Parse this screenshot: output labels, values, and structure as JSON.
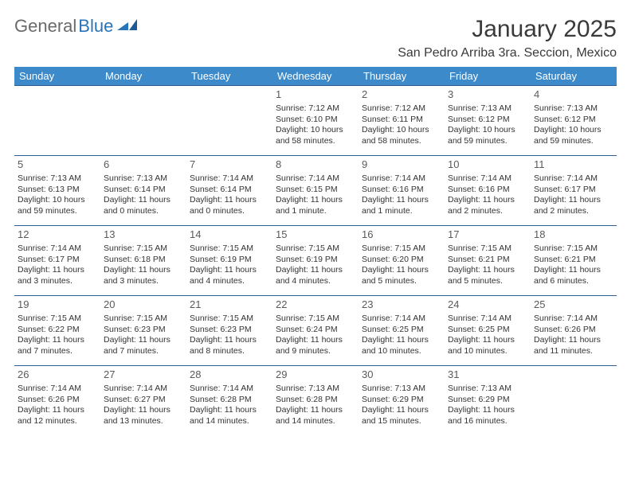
{
  "logo": {
    "text1": "General",
    "text2": "Blue"
  },
  "title": "January 2025",
  "location": "San Pedro Arriba 3ra. Seccion, Mexico",
  "colors": {
    "header_bg": "#3c8ac9",
    "header_text": "#ffffff",
    "row_divider": "#2a5d8f",
    "body_text": "#333333",
    "logo_gray": "#6a6a6a",
    "logo_blue": "#2a74b8"
  },
  "weekdays": [
    "Sunday",
    "Monday",
    "Tuesday",
    "Wednesday",
    "Thursday",
    "Friday",
    "Saturday"
  ],
  "weeks": [
    [
      null,
      null,
      null,
      {
        "d": "1",
        "sr": "7:12 AM",
        "ss": "6:10 PM",
        "dl": "10 hours and 58 minutes."
      },
      {
        "d": "2",
        "sr": "7:12 AM",
        "ss": "6:11 PM",
        "dl": "10 hours and 58 minutes."
      },
      {
        "d": "3",
        "sr": "7:13 AM",
        "ss": "6:12 PM",
        "dl": "10 hours and 59 minutes."
      },
      {
        "d": "4",
        "sr": "7:13 AM",
        "ss": "6:12 PM",
        "dl": "10 hours and 59 minutes."
      }
    ],
    [
      {
        "d": "5",
        "sr": "7:13 AM",
        "ss": "6:13 PM",
        "dl": "10 hours and 59 minutes."
      },
      {
        "d": "6",
        "sr": "7:13 AM",
        "ss": "6:14 PM",
        "dl": "11 hours and 0 minutes."
      },
      {
        "d": "7",
        "sr": "7:14 AM",
        "ss": "6:14 PM",
        "dl": "11 hours and 0 minutes."
      },
      {
        "d": "8",
        "sr": "7:14 AM",
        "ss": "6:15 PM",
        "dl": "11 hours and 1 minute."
      },
      {
        "d": "9",
        "sr": "7:14 AM",
        "ss": "6:16 PM",
        "dl": "11 hours and 1 minute."
      },
      {
        "d": "10",
        "sr": "7:14 AM",
        "ss": "6:16 PM",
        "dl": "11 hours and 2 minutes."
      },
      {
        "d": "11",
        "sr": "7:14 AM",
        "ss": "6:17 PM",
        "dl": "11 hours and 2 minutes."
      }
    ],
    [
      {
        "d": "12",
        "sr": "7:14 AM",
        "ss": "6:17 PM",
        "dl": "11 hours and 3 minutes."
      },
      {
        "d": "13",
        "sr": "7:15 AM",
        "ss": "6:18 PM",
        "dl": "11 hours and 3 minutes."
      },
      {
        "d": "14",
        "sr": "7:15 AM",
        "ss": "6:19 PM",
        "dl": "11 hours and 4 minutes."
      },
      {
        "d": "15",
        "sr": "7:15 AM",
        "ss": "6:19 PM",
        "dl": "11 hours and 4 minutes."
      },
      {
        "d": "16",
        "sr": "7:15 AM",
        "ss": "6:20 PM",
        "dl": "11 hours and 5 minutes."
      },
      {
        "d": "17",
        "sr": "7:15 AM",
        "ss": "6:21 PM",
        "dl": "11 hours and 5 minutes."
      },
      {
        "d": "18",
        "sr": "7:15 AM",
        "ss": "6:21 PM",
        "dl": "11 hours and 6 minutes."
      }
    ],
    [
      {
        "d": "19",
        "sr": "7:15 AM",
        "ss": "6:22 PM",
        "dl": "11 hours and 7 minutes."
      },
      {
        "d": "20",
        "sr": "7:15 AM",
        "ss": "6:23 PM",
        "dl": "11 hours and 7 minutes."
      },
      {
        "d": "21",
        "sr": "7:15 AM",
        "ss": "6:23 PM",
        "dl": "11 hours and 8 minutes."
      },
      {
        "d": "22",
        "sr": "7:15 AM",
        "ss": "6:24 PM",
        "dl": "11 hours and 9 minutes."
      },
      {
        "d": "23",
        "sr": "7:14 AM",
        "ss": "6:25 PM",
        "dl": "11 hours and 10 minutes."
      },
      {
        "d": "24",
        "sr": "7:14 AM",
        "ss": "6:25 PM",
        "dl": "11 hours and 10 minutes."
      },
      {
        "d": "25",
        "sr": "7:14 AM",
        "ss": "6:26 PM",
        "dl": "11 hours and 11 minutes."
      }
    ],
    [
      {
        "d": "26",
        "sr": "7:14 AM",
        "ss": "6:26 PM",
        "dl": "11 hours and 12 minutes."
      },
      {
        "d": "27",
        "sr": "7:14 AM",
        "ss": "6:27 PM",
        "dl": "11 hours and 13 minutes."
      },
      {
        "d": "28",
        "sr": "7:14 AM",
        "ss": "6:28 PM",
        "dl": "11 hours and 14 minutes."
      },
      {
        "d": "29",
        "sr": "7:13 AM",
        "ss": "6:28 PM",
        "dl": "11 hours and 14 minutes."
      },
      {
        "d": "30",
        "sr": "7:13 AM",
        "ss": "6:29 PM",
        "dl": "11 hours and 15 minutes."
      },
      {
        "d": "31",
        "sr": "7:13 AM",
        "ss": "6:29 PM",
        "dl": "11 hours and 16 minutes."
      },
      null
    ]
  ],
  "labels": {
    "sunrise": "Sunrise: ",
    "sunset": "Sunset: ",
    "daylight": "Daylight: "
  }
}
